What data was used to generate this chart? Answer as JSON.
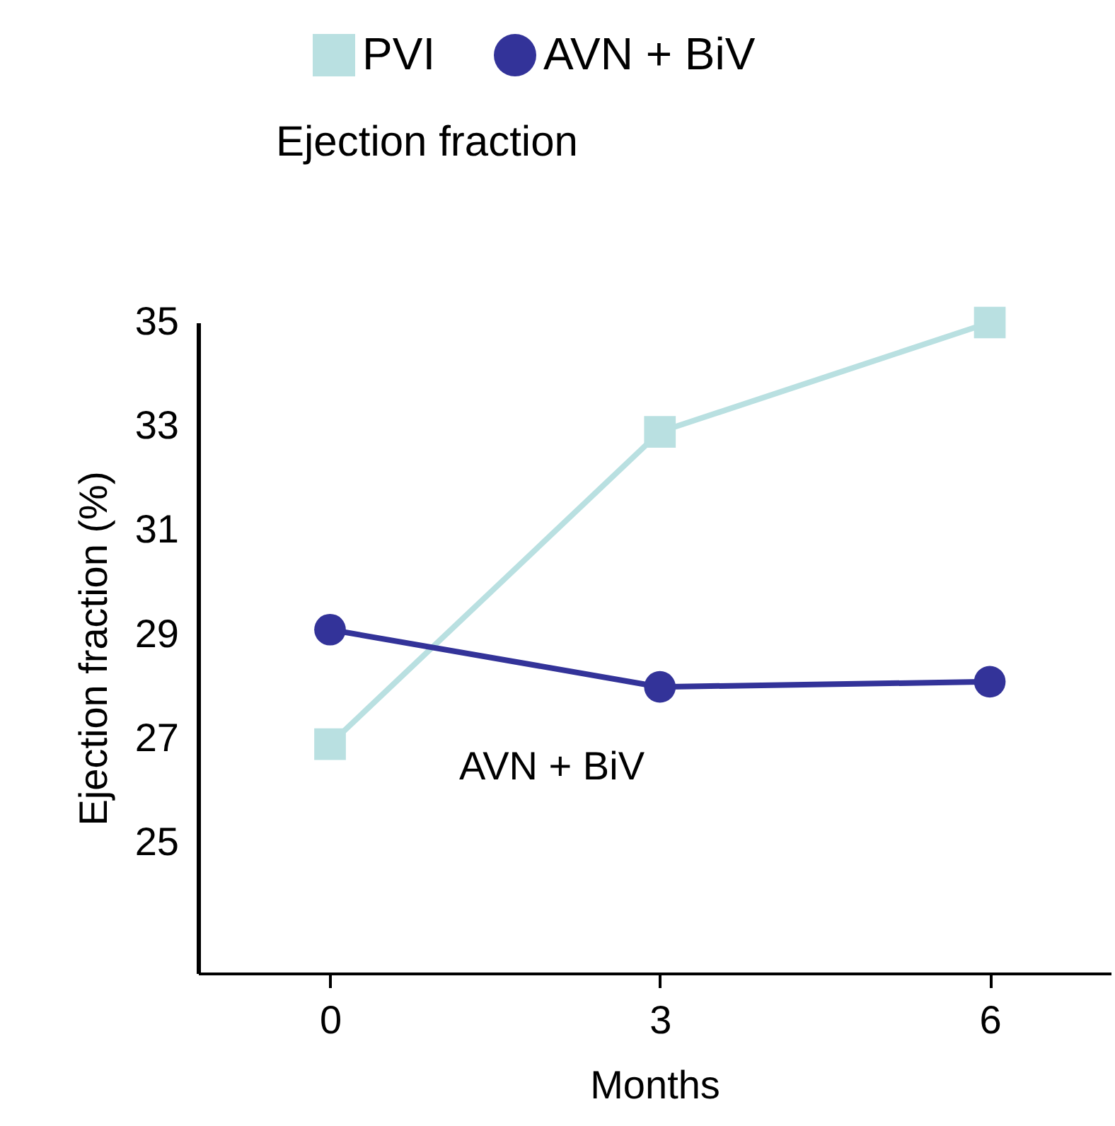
{
  "chart_data": {
    "type": "line",
    "title": "Ejection fraction",
    "xlabel": "Months",
    "ylabel": "Ejection fraction (%)",
    "x": [
      0,
      3,
      6
    ],
    "series": [
      {
        "name": "PVI",
        "color": "#b9e0e1",
        "values": [
          26.9,
          32.9,
          35.0
        ],
        "marker": "square"
      },
      {
        "name": "AVN + BiV",
        "color": "#333399",
        "values": [
          29.1,
          28.0,
          28.1
        ],
        "marker": "circle"
      }
    ],
    "xlim": [
      -1.2,
      7.1
    ],
    "xticks": [
      0,
      3,
      6
    ],
    "ylim": [
      22.5,
      35
    ],
    "yticks": [
      25,
      27,
      29,
      31,
      33,
      35
    ],
    "annotations": [
      "AVN + BiV"
    ],
    "legend": "top",
    "grid": false,
    "line_style": "solid"
  }
}
